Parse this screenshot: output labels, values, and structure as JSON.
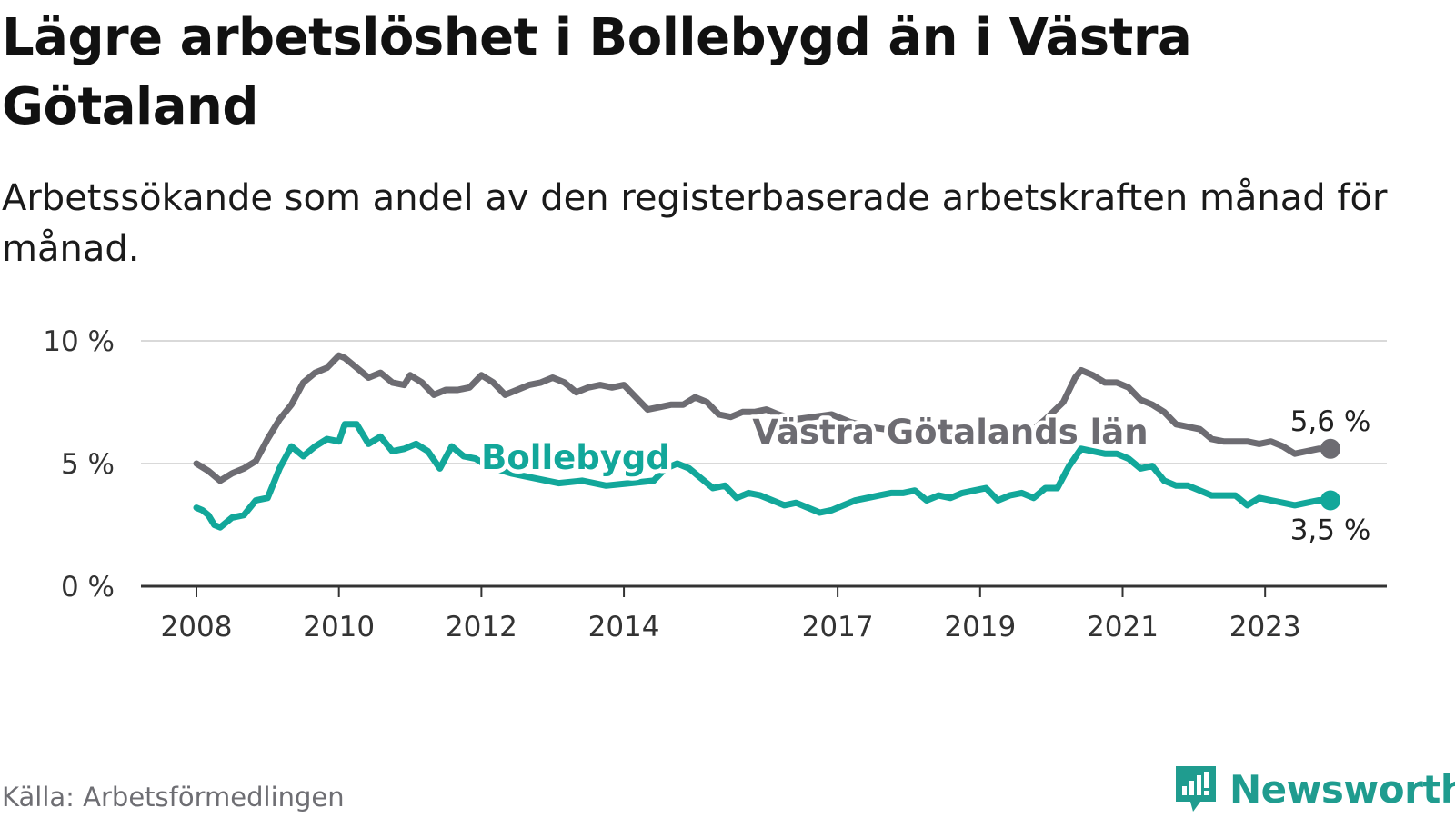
{
  "title": "Lägre arbetslöshet i Bollebygd än i Västra Götaland",
  "subtitle": "Arbetssökande som andel av den registerbaserade arbetskraften månad för månad.",
  "source": "Källa: Arbetsförmedlingen",
  "brand": {
    "name": "Newsworthy",
    "logo_icon": "newsworthy-logo-icon",
    "color": "#1f9c8f"
  },
  "chart_data": {
    "type": "line",
    "x_start": "2008-01",
    "x_end": "2023-12",
    "x_ticks": [
      {
        "year": 2008,
        "label": "2008"
      },
      {
        "year": 2010,
        "label": "2010"
      },
      {
        "year": 2012,
        "label": "2012"
      },
      {
        "year": 2014,
        "label": "2014"
      },
      {
        "year": 2017,
        "label": "2017"
      },
      {
        "year": 2019,
        "label": "2019"
      },
      {
        "year": 2021,
        "label": "2021"
      },
      {
        "year": 2023,
        "label": "2023"
      }
    ],
    "y_ticks": [
      {
        "value": 0,
        "label": "0 %"
      },
      {
        "value": 5,
        "label": "5 %"
      },
      {
        "value": 10,
        "label": "10 %"
      }
    ],
    "ylim": [
      0,
      10
    ],
    "grid": true,
    "series": [
      {
        "name": "Västra Götalands län",
        "color": "#6d6c72",
        "label_color": "#6d6c72",
        "end_label": "5,6 %",
        "points": [
          [
            "2008-01",
            5.0
          ],
          [
            "2008-03",
            4.7
          ],
          [
            "2008-05",
            4.3
          ],
          [
            "2008-07",
            4.6
          ],
          [
            "2008-09",
            4.8
          ],
          [
            "2008-11",
            5.1
          ],
          [
            "2009-01",
            6.0
          ],
          [
            "2009-03",
            6.8
          ],
          [
            "2009-05",
            7.4
          ],
          [
            "2009-07",
            8.3
          ],
          [
            "2009-09",
            8.7
          ],
          [
            "2009-11",
            8.9
          ],
          [
            "2010-01",
            9.4
          ],
          [
            "2010-02",
            9.3
          ],
          [
            "2010-04",
            8.9
          ],
          [
            "2010-06",
            8.5
          ],
          [
            "2010-08",
            8.7
          ],
          [
            "2010-10",
            8.3
          ],
          [
            "2010-12",
            8.2
          ],
          [
            "2011-01",
            8.6
          ],
          [
            "2011-03",
            8.3
          ],
          [
            "2011-05",
            7.8
          ],
          [
            "2011-07",
            8.0
          ],
          [
            "2011-09",
            8.0
          ],
          [
            "2011-11",
            8.1
          ],
          [
            "2012-01",
            8.6
          ],
          [
            "2012-03",
            8.3
          ],
          [
            "2012-05",
            7.8
          ],
          [
            "2012-07",
            8.0
          ],
          [
            "2012-09",
            8.2
          ],
          [
            "2012-11",
            8.3
          ],
          [
            "2013-01",
            8.5
          ],
          [
            "2013-03",
            8.3
          ],
          [
            "2013-05",
            7.9
          ],
          [
            "2013-07",
            8.1
          ],
          [
            "2013-09",
            8.2
          ],
          [
            "2013-11",
            8.1
          ],
          [
            "2014-01",
            8.2
          ],
          [
            "2014-03",
            7.7
          ],
          [
            "2014-05",
            7.2
          ],
          [
            "2014-07",
            7.3
          ],
          [
            "2014-09",
            7.4
          ],
          [
            "2014-11",
            7.4
          ],
          [
            "2015-01",
            7.7
          ],
          [
            "2015-03",
            7.5
          ],
          [
            "2015-05",
            7.0
          ],
          [
            "2015-07",
            6.9
          ],
          [
            "2015-09",
            7.1
          ],
          [
            "2015-11",
            7.1
          ],
          [
            "2016-01",
            7.2
          ],
          [
            "2016-03",
            7.0
          ],
          [
            "2016-06",
            6.8
          ],
          [
            "2016-09",
            6.9
          ],
          [
            "2016-12",
            7.0
          ],
          [
            "2017-03",
            6.7
          ],
          [
            "2017-06",
            6.5
          ],
          [
            "2017-09",
            6.4
          ],
          [
            "2017-12",
            6.5
          ],
          [
            "2018-03",
            6.3
          ],
          [
            "2018-06",
            6.2
          ],
          [
            "2018-09",
            6.1
          ],
          [
            "2018-12",
            6.3
          ],
          [
            "2019-03",
            6.2
          ],
          [
            "2019-06",
            6.1
          ],
          [
            "2019-09",
            6.2
          ],
          [
            "2019-12",
            6.8
          ],
          [
            "2020-03",
            7.5
          ],
          [
            "2020-05",
            8.5
          ],
          [
            "2020-06",
            8.8
          ],
          [
            "2020-08",
            8.6
          ],
          [
            "2020-10",
            8.3
          ],
          [
            "2020-12",
            8.3
          ],
          [
            "2021-02",
            8.1
          ],
          [
            "2021-04",
            7.6
          ],
          [
            "2021-06",
            7.4
          ],
          [
            "2021-08",
            7.1
          ],
          [
            "2021-10",
            6.6
          ],
          [
            "2021-12",
            6.5
          ],
          [
            "2022-02",
            6.4
          ],
          [
            "2022-04",
            6.0
          ],
          [
            "2022-06",
            5.9
          ],
          [
            "2022-08",
            5.9
          ],
          [
            "2022-10",
            5.9
          ],
          [
            "2022-12",
            5.8
          ],
          [
            "2023-02",
            5.9
          ],
          [
            "2023-04",
            5.7
          ],
          [
            "2023-06",
            5.4
          ],
          [
            "2023-08",
            5.5
          ],
          [
            "2023-10",
            5.6
          ],
          [
            "2023-12",
            5.6
          ]
        ]
      },
      {
        "name": "Bollebygd",
        "color": "#12a79a",
        "label_color": "#12a79a",
        "end_label": "3,5 %",
        "points": [
          [
            "2008-01",
            3.2
          ],
          [
            "2008-02",
            3.1
          ],
          [
            "2008-03",
            2.9
          ],
          [
            "2008-04",
            2.5
          ],
          [
            "2008-05",
            2.4
          ],
          [
            "2008-07",
            2.8
          ],
          [
            "2008-09",
            2.9
          ],
          [
            "2008-11",
            3.5
          ],
          [
            "2009-01",
            3.6
          ],
          [
            "2009-03",
            4.8
          ],
          [
            "2009-05",
            5.7
          ],
          [
            "2009-07",
            5.3
          ],
          [
            "2009-09",
            5.7
          ],
          [
            "2009-11",
            6.0
          ],
          [
            "2010-01",
            5.9
          ],
          [
            "2010-02",
            6.6
          ],
          [
            "2010-04",
            6.6
          ],
          [
            "2010-06",
            5.8
          ],
          [
            "2010-08",
            6.1
          ],
          [
            "2010-10",
            5.5
          ],
          [
            "2010-12",
            5.6
          ],
          [
            "2011-02",
            5.8
          ],
          [
            "2011-04",
            5.5
          ],
          [
            "2011-06",
            4.8
          ],
          [
            "2011-08",
            5.7
          ],
          [
            "2011-10",
            5.3
          ],
          [
            "2011-12",
            5.2
          ],
          [
            "2012-02",
            4.9
          ],
          [
            "2012-06",
            4.6
          ],
          [
            "2012-10",
            4.4
          ],
          [
            "2013-02",
            4.2
          ],
          [
            "2013-06",
            4.3
          ],
          [
            "2013-10",
            4.1
          ],
          [
            "2014-02",
            4.2
          ],
          [
            "2014-06",
            4.3
          ],
          [
            "2014-08",
            4.8
          ],
          [
            "2014-10",
            5.0
          ],
          [
            "2014-12",
            4.8
          ],
          [
            "2015-02",
            4.4
          ],
          [
            "2015-04",
            4.0
          ],
          [
            "2015-06",
            4.1
          ],
          [
            "2015-08",
            3.6
          ],
          [
            "2015-10",
            3.8
          ],
          [
            "2015-12",
            3.7
          ],
          [
            "2016-02",
            3.5
          ],
          [
            "2016-04",
            3.3
          ],
          [
            "2016-06",
            3.4
          ],
          [
            "2016-08",
            3.2
          ],
          [
            "2016-10",
            3.0
          ],
          [
            "2016-12",
            3.1
          ],
          [
            "2017-02",
            3.3
          ],
          [
            "2017-04",
            3.5
          ],
          [
            "2017-06",
            3.6
          ],
          [
            "2017-08",
            3.7
          ],
          [
            "2017-10",
            3.8
          ],
          [
            "2017-12",
            3.8
          ],
          [
            "2018-02",
            3.9
          ],
          [
            "2018-04",
            3.5
          ],
          [
            "2018-06",
            3.7
          ],
          [
            "2018-08",
            3.6
          ],
          [
            "2018-10",
            3.8
          ],
          [
            "2018-12",
            3.9
          ],
          [
            "2019-02",
            4.0
          ],
          [
            "2019-04",
            3.5
          ],
          [
            "2019-06",
            3.7
          ],
          [
            "2019-08",
            3.8
          ],
          [
            "2019-10",
            3.6
          ],
          [
            "2019-12",
            4.0
          ],
          [
            "2020-02",
            4.0
          ],
          [
            "2020-04",
            4.9
          ],
          [
            "2020-06",
            5.6
          ],
          [
            "2020-08",
            5.5
          ],
          [
            "2020-10",
            5.4
          ],
          [
            "2020-12",
            5.4
          ],
          [
            "2021-02",
            5.2
          ],
          [
            "2021-04",
            4.8
          ],
          [
            "2021-06",
            4.9
          ],
          [
            "2021-08",
            4.3
          ],
          [
            "2021-10",
            4.1
          ],
          [
            "2021-12",
            4.1
          ],
          [
            "2022-02",
            3.9
          ],
          [
            "2022-04",
            3.7
          ],
          [
            "2022-06",
            3.7
          ],
          [
            "2022-08",
            3.7
          ],
          [
            "2022-10",
            3.3
          ],
          [
            "2022-12",
            3.6
          ],
          [
            "2023-02",
            3.5
          ],
          [
            "2023-04",
            3.4
          ],
          [
            "2023-06",
            3.3
          ],
          [
            "2023-08",
            3.4
          ],
          [
            "2023-10",
            3.5
          ],
          [
            "2023-12",
            3.5
          ]
        ]
      }
    ]
  }
}
